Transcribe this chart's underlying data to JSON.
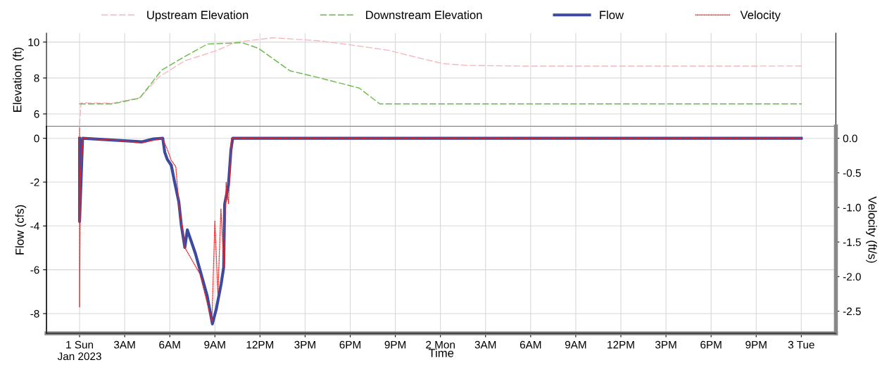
{
  "chart_data": [
    {
      "type": "line",
      "ylabel": "Elevation (ft)",
      "ylim": [
        5.3,
        10.5
      ],
      "yticks": [
        6,
        8,
        10
      ],
      "xlim": [
        "2022-12-31T21:48",
        "2023-01-03T02:18"
      ],
      "xticks": [
        "2023-01-01T00:00",
        "2023-01-01T03:00",
        "2023-01-01T06:00",
        "2023-01-01T09:00",
        "2023-01-01T12:00",
        "2023-01-01T15:00",
        "2023-01-01T18:00",
        "2023-01-01T21:00",
        "2023-01-02T00:00",
        "2023-01-02T03:00",
        "2023-01-02T06:00",
        "2023-01-02T09:00",
        "2023-01-02T12:00",
        "2023-01-02T15:00",
        "2023-01-02T18:00",
        "2023-01-02T21:00",
        "2023-01-03T00:00"
      ],
      "tick_labels": "y",
      "grid": true,
      "legend": "top",
      "line_style": "dashed",
      "series": [
        {
          "name": "Upstream Elevation",
          "color": "#f4b8be",
          "x": [
            "2023-01-01T00:00",
            "2023-01-01T00:06",
            "2023-01-01T02:12",
            "2023-01-01T04:00",
            "2023-01-01T05:16",
            "2023-01-01T07:00",
            "2023-01-01T09:06",
            "2023-01-01T10:24",
            "2023-01-01T12:54",
            "2023-01-01T15:48",
            "2023-01-01T18:04",
            "2023-01-01T20:30",
            "2023-01-01T22:48",
            "2023-01-02T00:12",
            "2023-01-02T01:48",
            "2023-01-02T06:00",
            "2023-01-02T12:00",
            "2023-01-02T18:00",
            "2023-01-03T00:00"
          ],
          "values": [
            5.4,
            6.62,
            6.6,
            6.9,
            8.05,
            8.96,
            9.52,
            10.0,
            10.24,
            10.08,
            9.84,
            9.55,
            9.07,
            8.8,
            8.7,
            8.66,
            8.66,
            8.66,
            8.67
          ]
        },
        {
          "name": "Downstream Elevation",
          "color": "#66bb44",
          "x": [
            "2023-01-01T00:00",
            "2023-01-01T02:12",
            "2023-01-01T04:00",
            "2023-01-01T05:27",
            "2023-01-01T07:00",
            "2023-01-01T08:30",
            "2023-01-01T10:48",
            "2023-01-01T11:54",
            "2023-01-01T14:00",
            "2023-01-01T16:00",
            "2023-01-01T18:36",
            "2023-01-01T19:58",
            "2023-01-02T00:00",
            "2023-01-02T12:00",
            "2023-01-03T00:00"
          ],
          "values": [
            6.56,
            6.56,
            6.88,
            8.43,
            9.2,
            9.89,
            9.97,
            9.65,
            8.4,
            8.0,
            7.44,
            6.56,
            6.56,
            6.56,
            6.56
          ]
        }
      ]
    },
    {
      "type": "line",
      "ylabel": "Flow (cfs)",
      "y2label": "Velocity (ft/s)",
      "xlabel": "Time",
      "ylim": [
        -8.9,
        0.54
      ],
      "yticks": [
        0,
        -2,
        -4,
        -6,
        -8
      ],
      "y2lim": [
        -2.82,
        0.17
      ],
      "y2ticks": [
        {
          "value": 0,
          "label": "0.0"
        },
        -0.5,
        {
          "value": -1,
          "label": "-1.0"
        },
        -1.5,
        {
          "value": -2,
          "label": "-2.0"
        },
        -2.5
      ],
      "xlim": [
        "2022-12-31T21:48",
        "2023-01-03T02:18"
      ],
      "xticks": [
        {
          "value": "2023-01-01T00:00",
          "label": "1 Sun\nJan 2023"
        },
        {
          "value": "2023-01-01T03:00",
          "label": "3AM"
        },
        {
          "value": "2023-01-01T06:00",
          "label": "6AM"
        },
        {
          "value": "2023-01-01T09:00",
          "label": "9AM"
        },
        {
          "value": "2023-01-01T12:00",
          "label": "12PM"
        },
        {
          "value": "2023-01-01T15:00",
          "label": "3PM"
        },
        {
          "value": "2023-01-01T18:00",
          "label": "6PM"
        },
        {
          "value": "2023-01-01T21:00",
          "label": "9PM"
        },
        {
          "value": "2023-01-02T00:00",
          "label": "2 Mon"
        },
        {
          "value": "2023-01-02T03:00",
          "label": "3AM"
        },
        {
          "value": "2023-01-02T06:00",
          "label": "6AM"
        },
        {
          "value": "2023-01-02T09:00",
          "label": "9AM"
        },
        {
          "value": "2023-01-02T12:00",
          "label": "12PM"
        },
        {
          "value": "2023-01-02T15:00",
          "label": "3PM"
        },
        {
          "value": "2023-01-02T18:00",
          "label": "6PM"
        },
        {
          "value": "2023-01-02T21:00",
          "label": "9PM"
        },
        {
          "value": "2023-01-03T00:00",
          "label": "3 Tue"
        }
      ],
      "grid": true,
      "legend": "top",
      "series": [
        {
          "name": "Flow",
          "color": "#3c4aa0",
          "line_style": "solid",
          "x": [
            "2023-01-01T00:00",
            "2023-01-01T00:00",
            "2023-01-01T00:12",
            "2023-01-01T04:08",
            "2023-01-01T04:54",
            "2023-01-01T05:32",
            "2023-01-01T05:40",
            "2023-01-01T05:50",
            "2023-01-01T06:06",
            "2023-01-01T06:18",
            "2023-01-01T06:36",
            "2023-01-01T06:46",
            "2023-01-01T07:00",
            "2023-01-01T07:10",
            "2023-01-01T07:42",
            "2023-01-01T08:29",
            "2023-01-01T08:50",
            "2023-01-01T09:05",
            "2023-01-01T09:25",
            "2023-01-01T09:35",
            "2023-01-01T09:39",
            "2023-01-01T09:54",
            "2023-01-01T10:04",
            "2023-01-01T10:11",
            "2023-01-02T00:00",
            "2023-01-03T00:00"
          ],
          "values": [
            0,
            -3.8,
            0,
            -0.16,
            -0.03,
            0,
            -0.64,
            -0.96,
            -1.23,
            -1.93,
            -2.9,
            -3.96,
            -4.98,
            -4.18,
            -5.25,
            -7.18,
            -8.47,
            -7.82,
            -6.64,
            -5.89,
            -3.0,
            -2.14,
            -0.53,
            0,
            0,
            0
          ]
        },
        {
          "name": "Velocity",
          "color": "#ee2222",
          "axis": "y2",
          "line_style": "dotted",
          "x": [
            "2023-01-01T00:00",
            "2023-01-01T00:00",
            "2023-01-01T00:03",
            "2023-01-01T00:12",
            "2023-01-01T02:32",
            "2023-01-01T04:06",
            "2023-01-01T05:30",
            "2023-01-01T05:48",
            "2023-01-01T06:06",
            "2023-01-01T06:24",
            "2023-01-01T06:36",
            "2023-01-01T07:00",
            "2023-01-01T08:00",
            "2023-01-01T08:48",
            "2023-01-01T09:00",
            "2023-01-01T09:12",
            "2023-01-01T09:24",
            "2023-01-01T09:36",
            "2023-01-01T09:45",
            "2023-01-01T09:54",
            "2023-01-01T10:06",
            "2023-01-02T00:00",
            "2023-01-03T00:00"
          ],
          "values": [
            0.15,
            -2.44,
            -0.6,
            0,
            -0.03,
            -0.07,
            0,
            -0.14,
            -0.32,
            -0.41,
            -0.95,
            -1.58,
            -1.96,
            -2.65,
            -1.19,
            -2.27,
            -1.02,
            -1.87,
            -0.64,
            -0.95,
            0,
            0,
            0
          ]
        }
      ]
    }
  ]
}
